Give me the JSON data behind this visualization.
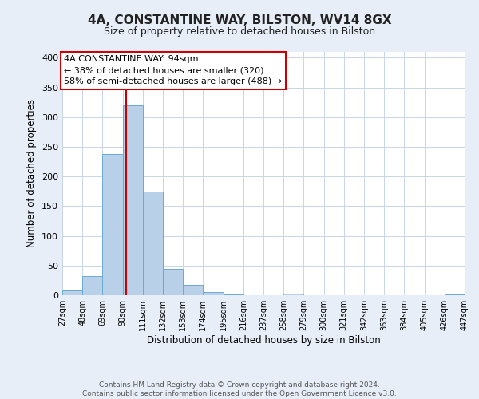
{
  "title": "4A, CONSTANTINE WAY, BILSTON, WV14 8GX",
  "subtitle": "Size of property relative to detached houses in Bilston",
  "xlabel": "Distribution of detached houses by size in Bilston",
  "ylabel": "Number of detached properties",
  "bin_edges": [
    27,
    48,
    69,
    90,
    111,
    132,
    153,
    174,
    195,
    216,
    237,
    258,
    279,
    300,
    321,
    342,
    363,
    384,
    405,
    426,
    447
  ],
  "bin_counts": [
    8,
    32,
    238,
    320,
    175,
    45,
    17,
    5,
    2,
    0,
    0,
    3,
    0,
    0,
    0,
    0,
    0,
    0,
    0,
    2
  ],
  "bar_color": "#b8d0e8",
  "bar_edge_color": "#6aaad4",
  "property_size": 94,
  "vline_color": "#cc0000",
  "annotation_line1": "4A CONSTANTINE WAY: 94sqm",
  "annotation_line2": "← 38% of detached houses are smaller (320)",
  "annotation_line3": "58% of semi-detached houses are larger (488) →",
  "annotation_box_edge_color": "#cc0000",
  "annotation_box_face_color": "#ffffff",
  "ylim": [
    0,
    410
  ],
  "yticks": [
    0,
    50,
    100,
    150,
    200,
    250,
    300,
    350,
    400
  ],
  "tick_labels": [
    "27sqm",
    "48sqm",
    "69sqm",
    "90sqm",
    "111sqm",
    "132sqm",
    "153sqm",
    "174sqm",
    "195sqm",
    "216sqm",
    "237sqm",
    "258sqm",
    "279sqm",
    "300sqm",
    "321sqm",
    "342sqm",
    "363sqm",
    "384sqm",
    "405sqm",
    "426sqm",
    "447sqm"
  ],
  "footer_text": "Contains HM Land Registry data © Crown copyright and database right 2024.\nContains public sector information licensed under the Open Government Licence v3.0.",
  "bg_color": "#e8eef8",
  "plot_bg_color": "#ffffff",
  "grid_color": "#c8d4e8",
  "title_fontsize": 11,
  "subtitle_fontsize": 9,
  "axis_label_fontsize": 8.5,
  "tick_fontsize": 7,
  "footer_fontsize": 6.5,
  "annotation_fontsize": 8
}
